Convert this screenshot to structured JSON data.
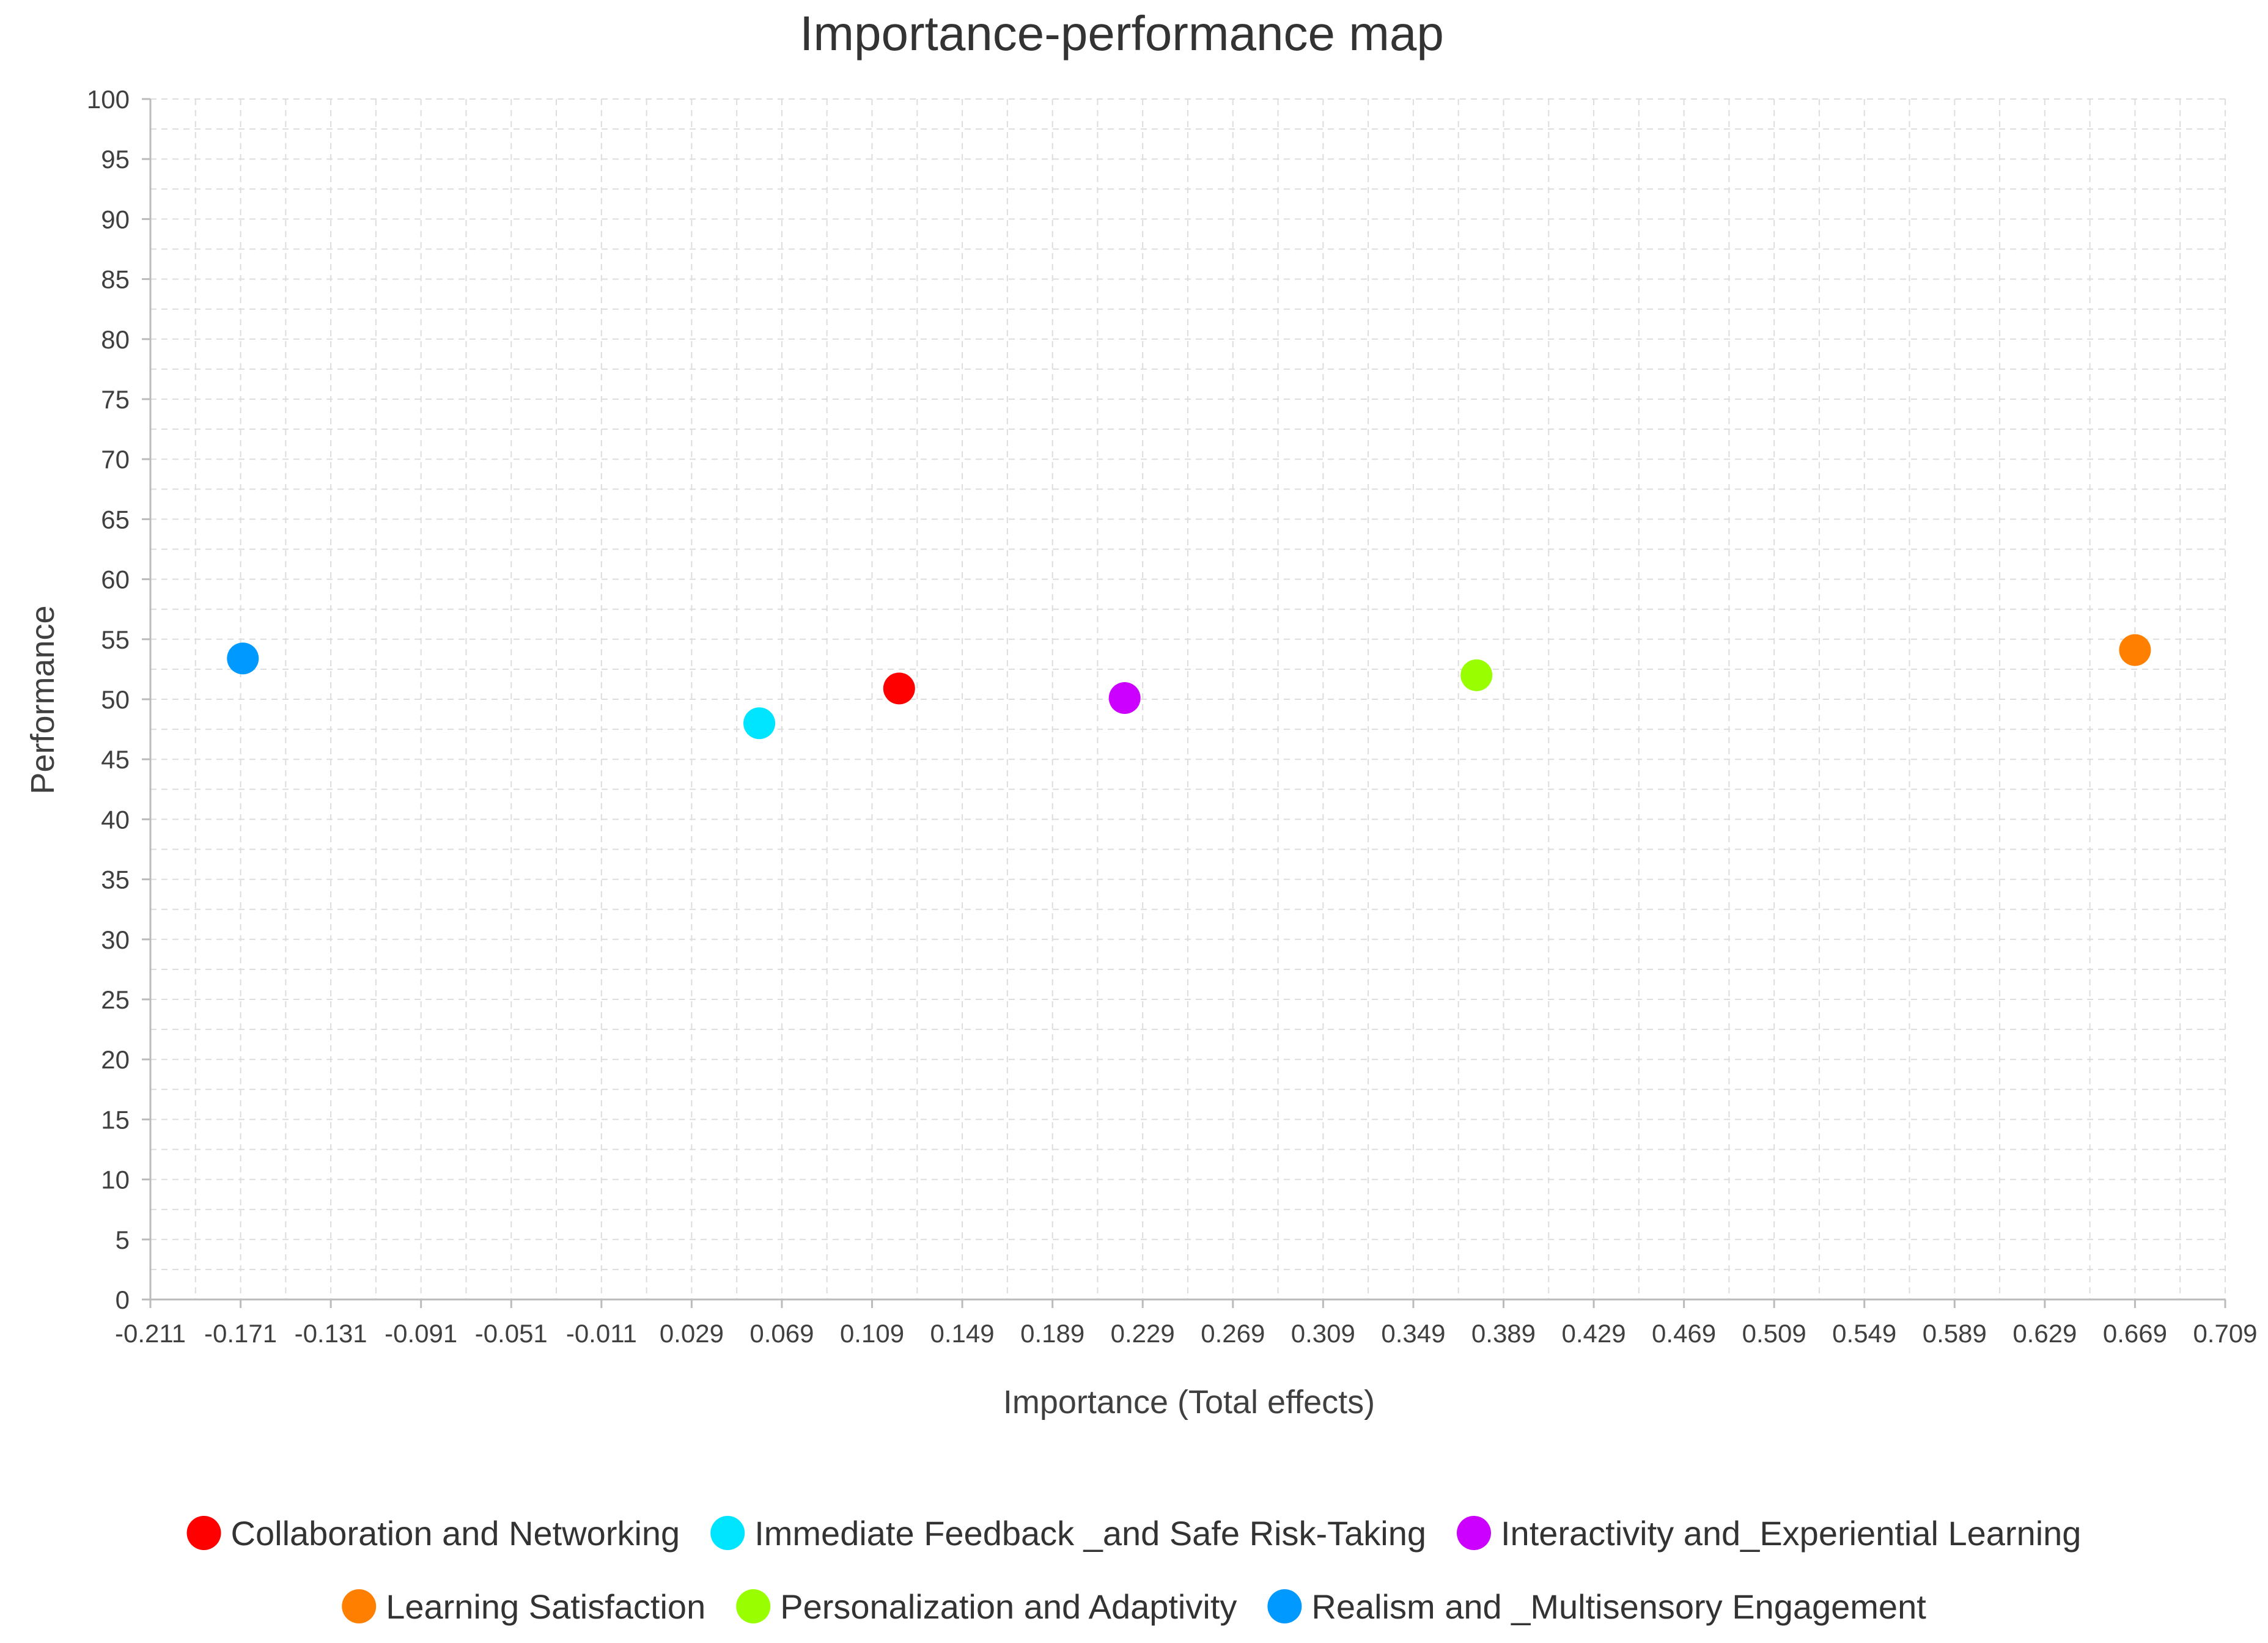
{
  "chart_data": {
    "type": "scatter",
    "title": "Importance-performance map",
    "xlabel": "Importance (Total effects)",
    "ylabel": "Performance",
    "xlim": [
      -0.211,
      0.709
    ],
    "ylim": [
      0,
      100
    ],
    "x_ticks": [
      "-0.211",
      "-0.171",
      "-0.131",
      "-0.091",
      "-0.051",
      "-0.011",
      "0.029",
      "0.069",
      "0.109",
      "0.149",
      "0.189",
      "0.229",
      "0.269",
      "0.309",
      "0.349",
      "0.389",
      "0.429",
      "0.469",
      "0.509",
      "0.549",
      "0.589",
      "0.629",
      "0.669",
      "0.709"
    ],
    "y_ticks": [
      "0",
      "5",
      "10",
      "15",
      "20",
      "25",
      "30",
      "35",
      "40",
      "45",
      "50",
      "55",
      "60",
      "65",
      "70",
      "75",
      "80",
      "85",
      "90",
      "95",
      "100"
    ],
    "grid": true,
    "legend_position": "bottom",
    "series": [
      {
        "name": "Collaboration and Networking",
        "color": "#ff0000",
        "x": 0.121,
        "y": 50.9
      },
      {
        "name": "Immediate Feedback _and Safe Risk-Taking",
        "color": "#00e5ff",
        "x": 0.059,
        "y": 48.0
      },
      {
        "name": "Interactivity and_Experiential Learning",
        "color": "#cc00ff",
        "x": 0.221,
        "y": 50.1
      },
      {
        "name": "Learning Satisfaction",
        "color": "#ff8000",
        "x": 0.669,
        "y": 54.1
      },
      {
        "name": "Personalization and Adaptivity",
        "color": "#99ff00",
        "x": 0.377,
        "y": 52.0
      },
      {
        "name": "Realism and _Multisensory Engagement",
        "color": "#0099ff",
        "x": -0.17,
        "y": 53.4
      }
    ]
  }
}
